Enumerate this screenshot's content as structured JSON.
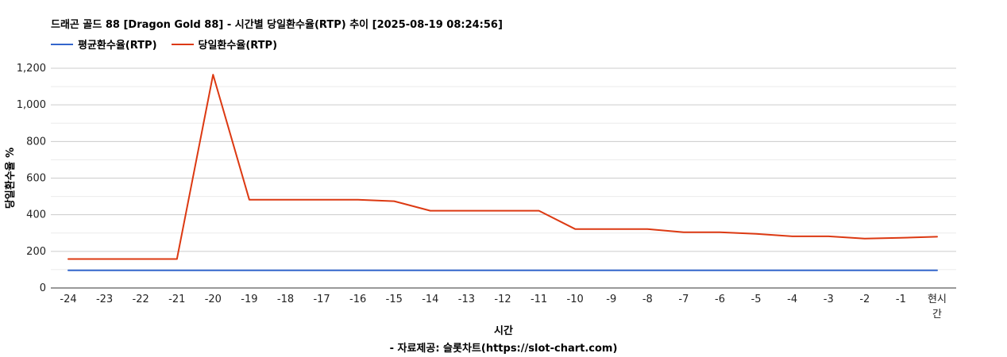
{
  "chart_data": {
    "type": "line",
    "title": "드래곤 골드 88 [Dragon Gold 88] - 시간별 당일환수율(RTP) 추이 [2025-08-19 08:24:56]",
    "xlabel": "시간",
    "ylabel": "당일환수율 %",
    "source": "- 자료제공: 슬롯차트(https://slot-chart.com)",
    "categories": [
      "-24",
      "-23",
      "-22",
      "-21",
      "-20",
      "-19",
      "-18",
      "-17",
      "-16",
      "-15",
      "-14",
      "-13",
      "-12",
      "-11",
      "-10",
      "-9",
      "-8",
      "-7",
      "-6",
      "-5",
      "-4",
      "-3",
      "-2",
      "-1",
      "현시간"
    ],
    "ylim": [
      0,
      1200
    ],
    "yticks": [
      0,
      200,
      400,
      600,
      800,
      1000,
      1200
    ],
    "ytick_labels": [
      "0",
      "200",
      "400",
      "600",
      "800",
      "1,000",
      "1,200"
    ],
    "grid": true,
    "legend_position": "top-left",
    "series": [
      {
        "name": "평균환수율(RTP)",
        "color": "#3366cc",
        "values": [
          96,
          96,
          96,
          96,
          96,
          96,
          96,
          96,
          96,
          96,
          96,
          96,
          96,
          96,
          96,
          96,
          96,
          96,
          96,
          96,
          96,
          96,
          96,
          96,
          96
        ]
      },
      {
        "name": "당일환수율(RTP)",
        "color": "#dc3912",
        "values": [
          158,
          158,
          158,
          158,
          1165,
          482,
          482,
          482,
          482,
          474,
          422,
          422,
          422,
          422,
          322,
          322,
          322,
          304,
          304,
          296,
          282,
          282,
          270,
          274,
          280
        ]
      }
    ]
  }
}
